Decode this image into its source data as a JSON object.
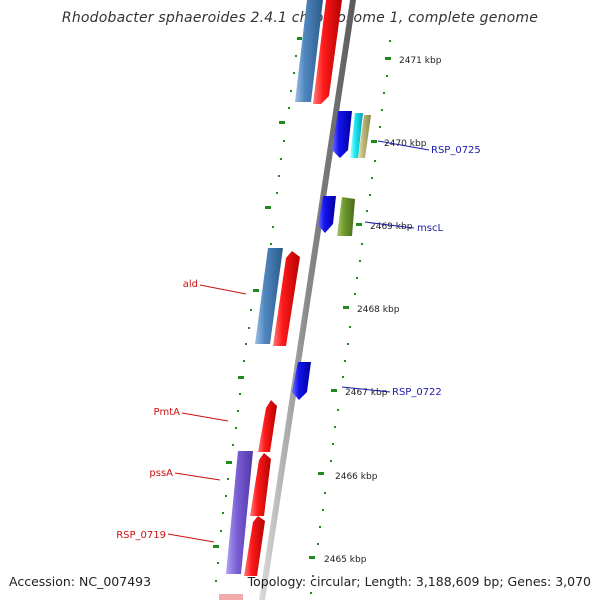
{
  "title": "Rhodobacter sphaeroides 2.4.1 chromosome 1, complete genome",
  "footer": {
    "accession": "Accession: NC_007493",
    "summary": "Topology: circular; Length: 3,188,609 bp; Genes: 3,070"
  },
  "colors": {
    "red": "#ee1111",
    "steelblue": "#4a7fb5",
    "blue": "#1a1aee",
    "cyan": "#19e6f0",
    "khaki": "#b8b47a",
    "olive": "#6f9a2e",
    "purple": "#7755cc",
    "tick": "#1f8a1f",
    "backbone": "#888888",
    "right_label": "#1b1ba8",
    "left_label": "#cc1111"
  },
  "scale_labels": [
    "2471 kbp",
    "2470 kbp",
    "2469 kbp",
    "2468 kbp",
    "2467 kbp",
    "2466 kbp",
    "2465 kbp"
  ],
  "gene_labels": {
    "right": [
      "RSP_0725",
      "mscL",
      "RSP_0722"
    ],
    "left": [
      "ald",
      "PmtA",
      "pssA",
      "RSP_0719"
    ]
  }
}
